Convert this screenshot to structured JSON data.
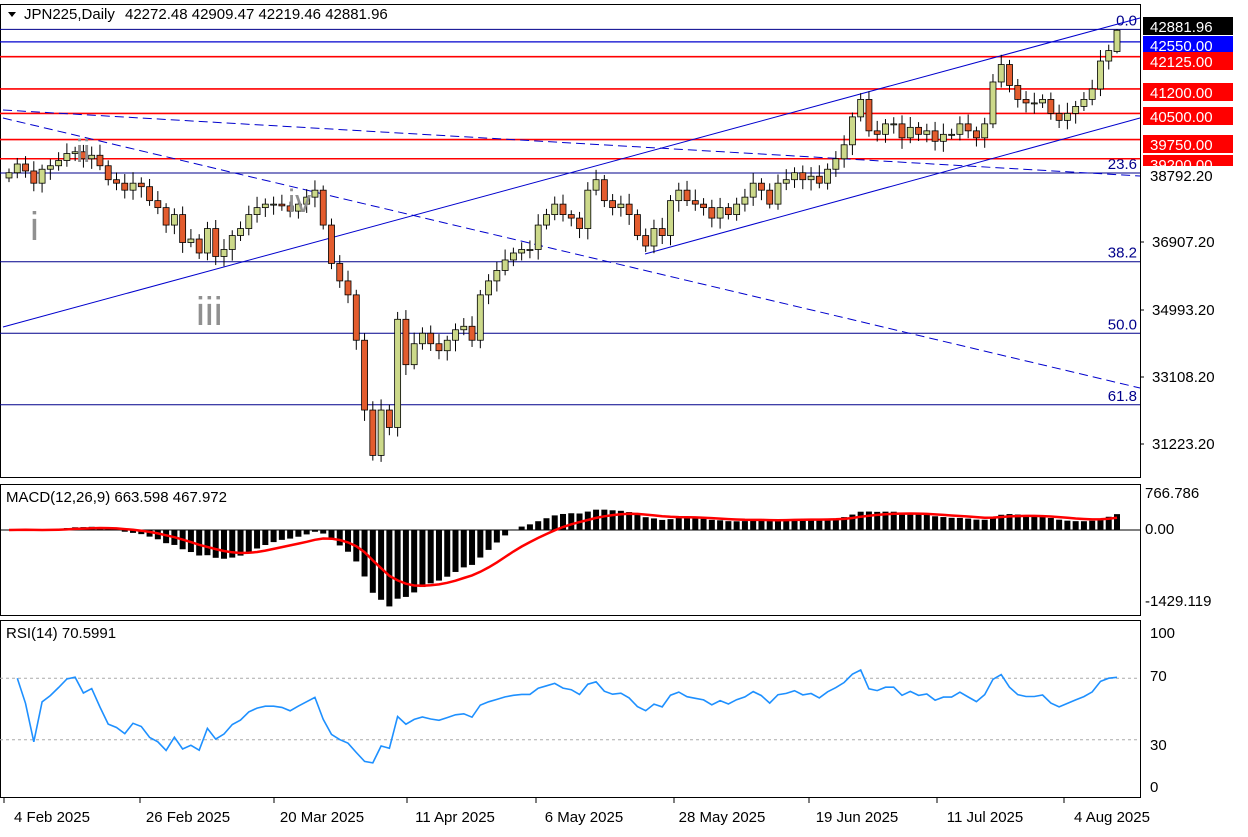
{
  "header": {
    "symbol_label": "JPN225,Daily",
    "ohlc": "42272.48 42909.47 42219.46 42881.96"
  },
  "price_panel": {
    "y_ticks": [
      "36907.20",
      "34993.20",
      "33108.20",
      "31223.20"
    ],
    "fib_labels": [
      "0.0",
      "23.6",
      "38.2",
      "50.0",
      "61.8"
    ],
    "wave_labels": [
      "i",
      "ii",
      "iii",
      "iv"
    ],
    "price_tags": [
      {
        "text": "42881.96",
        "bg": "#000000",
        "fg": "#ffffff"
      },
      {
        "text": "42550.00",
        "bg": "#0000ff",
        "fg": "#ffffff"
      },
      {
        "text": "42125.00",
        "bg": "#ff0000",
        "fg": "#ffffff"
      },
      {
        "text": "41200.00",
        "bg": "#ff0000",
        "fg": "#ffffff"
      },
      {
        "text": "40500.00",
        "bg": "#ff0000",
        "fg": "#ffffff"
      },
      {
        "text": "39750.00",
        "bg": "#ff0000",
        "fg": "#ffffff"
      },
      {
        "text": "39200.00",
        "bg": "#ff0000",
        "fg": "#ffffff"
      },
      {
        "text": "38792.20",
        "bg": "#ffffff",
        "fg": "#000000"
      }
    ]
  },
  "macd_panel": {
    "label": "MACD(12,26,9) 663.598 467.972",
    "y_ticks": [
      "766.786",
      "0.00",
      "-1429.119"
    ]
  },
  "rsi_panel": {
    "label": "RSI(14) 70.5991",
    "y_ticks": [
      "100",
      "70",
      "30",
      "0"
    ]
  },
  "x_axis": {
    "dates": [
      "4 Feb 2025",
      "26 Feb 2025",
      "20 Mar 2025",
      "11 Apr 2025",
      "6 May 2025",
      "28 May 2025",
      "19 Jun 2025",
      "11 Jul 2025",
      "4 Aug 2025"
    ]
  },
  "colors": {
    "bull": "#ccd98a",
    "bear": "#e35c2e",
    "resistance": "#ff0000",
    "fib_and_channel": "#00008b",
    "macd_signal": "#ff0000",
    "rsi_line": "#1e90ff"
  },
  "chart_data": {
    "type": "candlestick",
    "symbol": "JPN225",
    "timeframe": "Daily",
    "last_bar": {
      "open": 42272.48,
      "high": 42909.47,
      "low": 42219.46,
      "close": 42881.96
    },
    "price_range": [
      30000,
      43300
    ],
    "closes": [
      38800,
      39050,
      38850,
      38500,
      38900,
      39000,
      39150,
      39350,
      39400,
      39200,
      39300,
      39000,
      38600,
      38500,
      38300,
      38500,
      38400,
      38000,
      37800,
      37300,
      37600,
      36800,
      36900,
      36500,
      37200,
      36400,
      36600,
      37000,
      37200,
      37600,
      37800,
      37900,
      37900,
      37850,
      37700,
      37900,
      38100,
      38300,
      37300,
      36200,
      35700,
      35300,
      34000,
      32000,
      30700,
      32000,
      31500,
      34600,
      33300,
      33900,
      34200,
      33900,
      33700,
      34000,
      34300,
      34400,
      34000,
      35300,
      35700,
      36000,
      36300,
      36500,
      36600,
      36600,
      37300,
      37600,
      37900,
      37600,
      37500,
      37200,
      38300,
      38600,
      38000,
      37800,
      37900,
      37600,
      37000,
      36700,
      37200,
      37000,
      38000,
      38300,
      38000,
      37900,
      37800,
      37500,
      37800,
      37600,
      37900,
      38100,
      38500,
      38300,
      37900,
      38500,
      38600,
      38800,
      38600,
      38700,
      38500,
      38900,
      39200,
      39600,
      40400,
      40900,
      40000,
      39900,
      40200,
      40200,
      39800,
      40100,
      39900,
      40000,
      39700,
      39900,
      39900,
      40200,
      40000,
      39800,
      40200,
      41400,
      41900,
      41300,
      40900,
      40800,
      40800,
      40900,
      40500,
      40300,
      40500,
      40700,
      40900,
      41200,
      42000,
      42300,
      42882
    ],
    "fibonacci": [
      {
        "level": "0.0",
        "price": 42909
      },
      {
        "level": "23.6",
        "price": 38792
      },
      {
        "level": "38.2",
        "price": 36250
      },
      {
        "level": "50.0",
        "price": 34200
      },
      {
        "level": "61.8",
        "price": 32150
      }
    ],
    "resistance_levels": [
      42125,
      41200,
      40500,
      39750,
      39200
    ],
    "support_level_blue": 42550,
    "elliott_wave_labels": [
      "i",
      "ii",
      "iii",
      "iv"
    ],
    "macd": {
      "params": "12,26,9",
      "main": 663.598,
      "signal": 467.972,
      "axis_max": 766.786,
      "axis_min": -1429.119
    },
    "rsi": {
      "period": 14,
      "value": 70.5991,
      "levels": [
        70,
        30
      ],
      "range": [
        0,
        100
      ]
    },
    "x_tick_labels": [
      "4 Feb 2025",
      "26 Feb 2025",
      "20 Mar 2025",
      "11 Apr 2025",
      "6 May 2025",
      "28 May 2025",
      "19 Jun 2025",
      "11 Jul 2025",
      "4 Aug 2025"
    ]
  }
}
